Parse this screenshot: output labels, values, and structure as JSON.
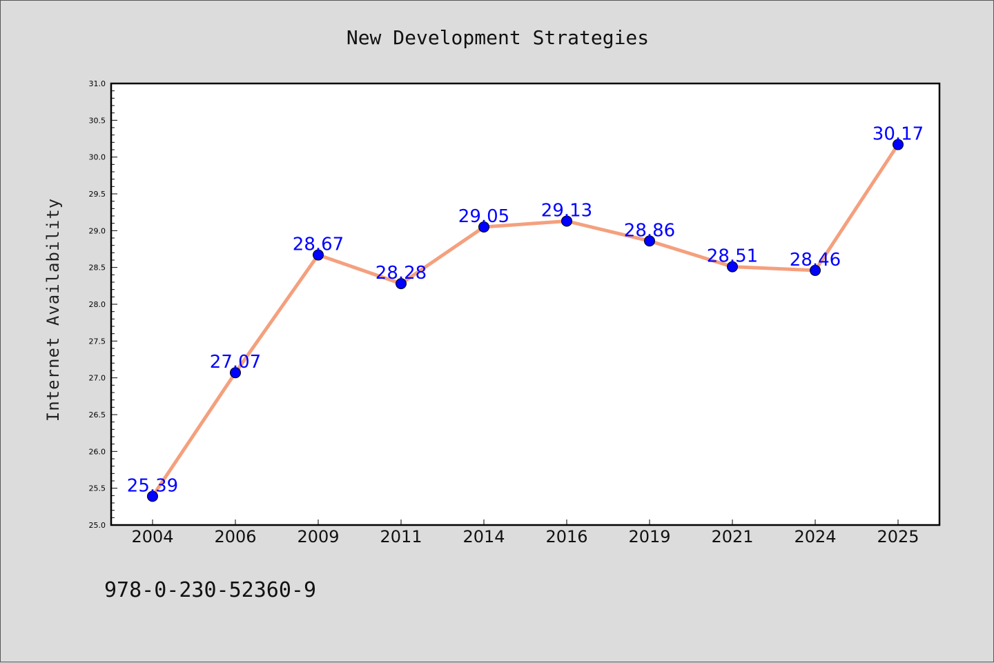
{
  "chart_data": {
    "type": "line",
    "title": "New Development Strategies",
    "xlabel": "",
    "ylabel": "Internet Availability",
    "categories": [
      "2004",
      "2006",
      "2009",
      "2011",
      "2014",
      "2016",
      "2019",
      "2021",
      "2024",
      "2025"
    ],
    "series": [
      {
        "values": [
          25.39,
          27.07,
          28.67,
          28.28,
          29.05,
          29.13,
          28.86,
          28.51,
          28.46,
          30.17
        ]
      }
    ],
    "data_labels": [
      "25.39",
      "27.07",
      "28.67",
      "28.28",
      "29.05",
      "29.13",
      "28.86",
      "28.51",
      "28.46",
      "30.17"
    ],
    "ylim": [
      25.0,
      31.0
    ],
    "yticks": [
      "25.0",
      "25.5",
      "26.0",
      "26.5",
      "27.0",
      "27.5",
      "28.0",
      "28.5",
      "29.0",
      "29.5",
      "30.0",
      "30.5",
      "31.0"
    ],
    "grid": false,
    "colors": {
      "line": "#f4a07e",
      "marker": "#0000ff",
      "label": "#0000ff"
    }
  },
  "footnote": "978-0-230-52360-9"
}
